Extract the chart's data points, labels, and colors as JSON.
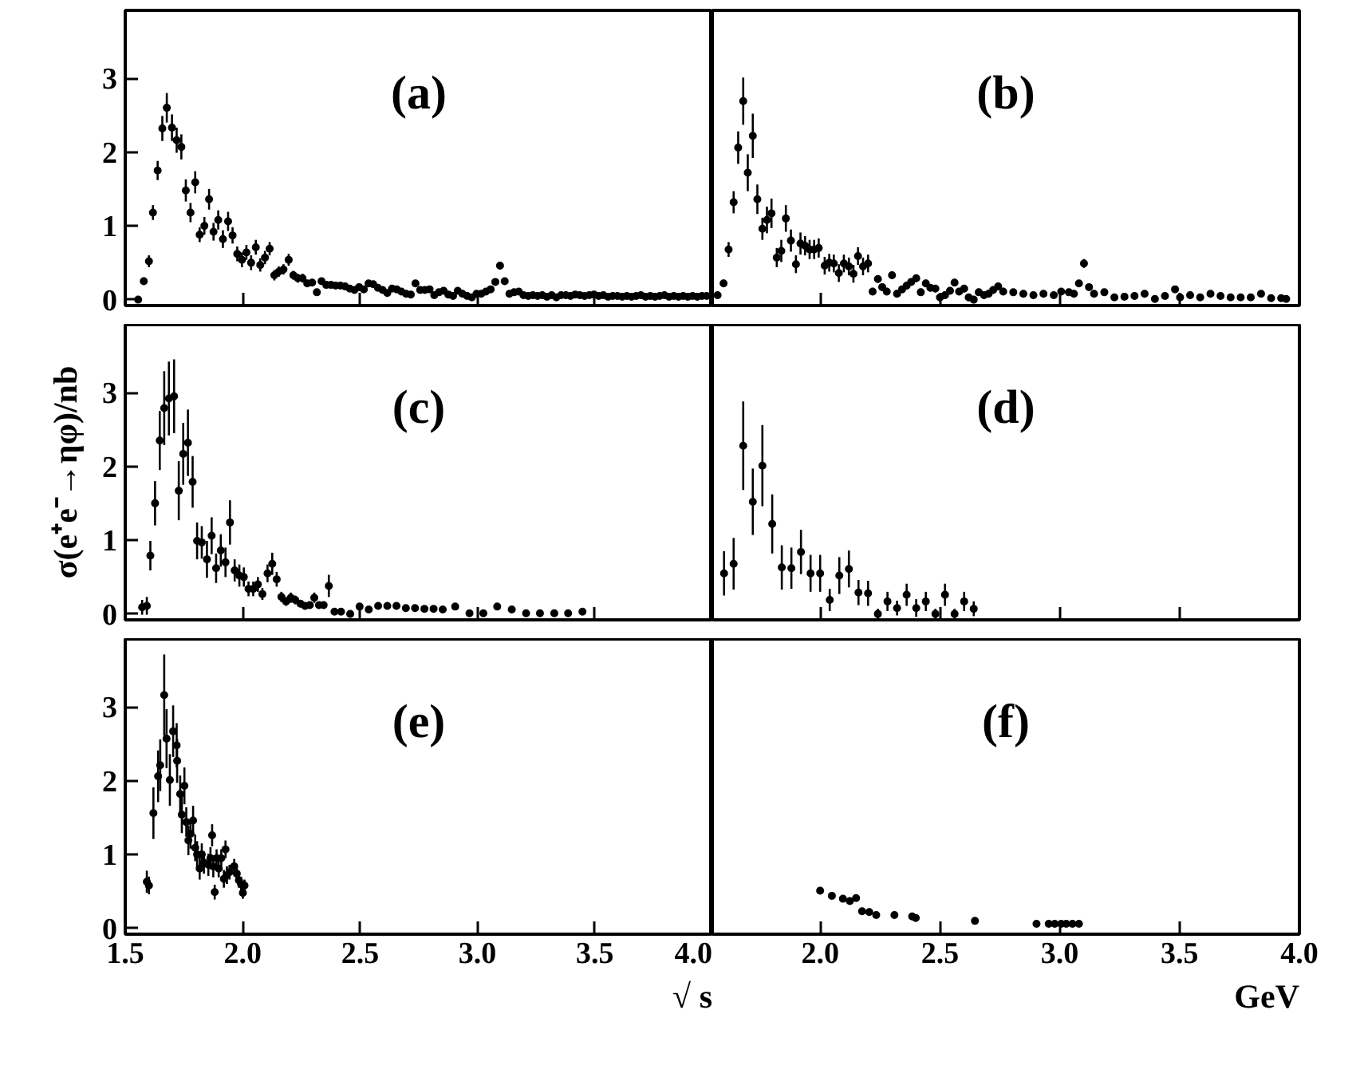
{
  "chart_data": [
    {
      "type": "scatter",
      "annotations": [
        "(a)"
      ],
      "xlim": [
        1.5,
        4.0
      ],
      "ylim": [
        -0.08,
        3.92
      ],
      "yticks": [
        0,
        1,
        2,
        3
      ],
      "xticks": [
        {
          "value": 1.5,
          "label": null
        },
        {
          "value": 2.0,
          "label": null
        },
        {
          "value": 2.5,
          "label": null
        },
        {
          "value": 3.0,
          "label": null
        },
        {
          "value": 3.5,
          "label": null
        },
        {
          "value": 4.0,
          "label": null
        }
      ],
      "tick_labels": "y",
      "grid": false,
      "marker": "circle",
      "color": "#000000",
      "x": [
        1.555,
        1.579,
        1.601,
        1.618,
        1.638,
        1.658,
        1.677,
        1.699,
        1.719,
        1.739,
        1.758,
        1.778,
        1.798,
        1.817,
        1.837,
        1.857,
        1.876,
        1.896,
        1.916,
        1.938,
        1.957,
        1.977,
        1.997,
        2.016,
        2.036,
        2.056,
        2.075,
        2.095,
        2.115,
        2.135,
        2.154,
        2.174,
        2.196,
        2.216,
        2.235,
        2.255,
        2.275,
        2.296,
        2.316,
        2.336,
        2.356,
        2.376,
        2.396,
        2.416,
        2.436,
        2.456,
        2.476,
        2.496,
        2.516,
        2.536,
        2.556,
        2.576,
        2.596,
        2.616,
        2.636,
        2.656,
        2.676,
        2.696,
        2.716,
        2.736,
        2.756,
        2.776,
        2.796,
        2.816,
        2.836,
        2.856,
        2.876,
        2.896,
        2.916,
        2.936,
        2.956,
        2.976,
        2.996,
        3.016,
        3.036,
        3.056,
        3.076,
        3.096,
        3.116,
        3.136,
        3.156,
        3.176,
        3.196,
        3.216,
        3.236,
        3.256,
        3.276,
        3.296,
        3.316,
        3.336,
        3.356,
        3.376,
        3.396,
        3.416,
        3.436,
        3.456,
        3.476,
        3.496,
        3.516,
        3.536,
        3.556,
        3.576,
        3.596,
        3.616,
        3.636,
        3.656,
        3.676,
        3.696,
        3.716,
        3.736,
        3.756,
        3.776,
        3.796,
        3.816,
        3.836,
        3.856,
        3.876,
        3.896,
        3.916,
        3.936,
        3.956,
        3.976
      ],
      "values": [
        0.0,
        0.25,
        0.52,
        1.18,
        1.75,
        2.32,
        2.6,
        2.33,
        2.16,
        2.07,
        1.48,
        1.18,
        1.59,
        0.88,
        1.0,
        1.36,
        0.92,
        1.08,
        0.82,
        1.06,
        0.87,
        0.62,
        0.54,
        0.64,
        0.5,
        0.71,
        0.47,
        0.57,
        0.69,
        0.33,
        0.38,
        0.41,
        0.54,
        0.33,
        0.29,
        0.29,
        0.22,
        0.23,
        0.1,
        0.25,
        0.2,
        0.2,
        0.19,
        0.19,
        0.18,
        0.15,
        0.13,
        0.17,
        0.14,
        0.22,
        0.21,
        0.16,
        0.13,
        0.09,
        0.15,
        0.14,
        0.11,
        0.08,
        0.07,
        0.22,
        0.13,
        0.13,
        0.14,
        0.06,
        0.1,
        0.12,
        0.07,
        0.05,
        0.12,
        0.08,
        0.05,
        0.03,
        0.08,
        0.08,
        0.11,
        0.14,
        0.24,
        0.46,
        0.25,
        0.08,
        0.1,
        0.11,
        0.06,
        0.05,
        0.06,
        0.05,
        0.06,
        0.04,
        0.06,
        0.03,
        0.06,
        0.06,
        0.05,
        0.07,
        0.06,
        0.05,
        0.06,
        0.07,
        0.05,
        0.06,
        0.04,
        0.05,
        0.05,
        0.04,
        0.05,
        0.04,
        0.05,
        0.06,
        0.04,
        0.05,
        0.04,
        0.05,
        0.06,
        0.04,
        0.05,
        0.04,
        0.05,
        0.04,
        0.05,
        0.04,
        0.05,
        0.05
      ],
      "errors": [
        0.03,
        0.05,
        0.08,
        0.1,
        0.13,
        0.17,
        0.2,
        0.18,
        0.17,
        0.17,
        0.15,
        0.13,
        0.15,
        0.1,
        0.12,
        0.14,
        0.12,
        0.13,
        0.12,
        0.13,
        0.11,
        0.1,
        0.1,
        0.1,
        0.1,
        0.1,
        0.09,
        0.09,
        0.09,
        0.07,
        0.07,
        0.07,
        0.08,
        0.06,
        0.06,
        0.06,
        0.05,
        0.05,
        0.04,
        0.04,
        0.03,
        0.03,
        0.03,
        0.03,
        0.03,
        0.03,
        0.03,
        0.03,
        0.03,
        0.03,
        0.03,
        0.03,
        0.03,
        0.03,
        0.03,
        0.03,
        0.03,
        0.03,
        0.03,
        0.03,
        0.03,
        0.03,
        0.03,
        0.03,
        0.03,
        0.03,
        0.03,
        0.03,
        0.03,
        0.03,
        0.03,
        0.03,
        0.03,
        0.03,
        0.03,
        0.03,
        0.03,
        0.05,
        0.03,
        0.03,
        0.03,
        0.03,
        0.03,
        0.03,
        0.03,
        0.03,
        0.03,
        0.03,
        0.03,
        0.03,
        0.03,
        0.03,
        0.03,
        0.03,
        0.03,
        0.03,
        0.03,
        0.03,
        0.03,
        0.03,
        0.03,
        0.03,
        0.03,
        0.03,
        0.03,
        0.03,
        0.03,
        0.03,
        0.03,
        0.03,
        0.03,
        0.03,
        0.03,
        0.03,
        0.03,
        0.03,
        0.03,
        0.03,
        0.03,
        0.03,
        0.03,
        0.03
      ]
    },
    {
      "type": "scatter",
      "annotations": [
        "(b)"
      ],
      "xlim": [
        1.55,
        4.0
      ],
      "ylim": [
        -0.08,
        3.92
      ],
      "yticks": [
        0,
        1,
        2,
        3
      ],
      "xticks": [
        {
          "value": 2.0,
          "label": null
        },
        {
          "value": 2.5,
          "label": null
        },
        {
          "value": 3.0,
          "label": null
        },
        {
          "value": 3.5,
          "label": null
        },
        {
          "value": 4.0,
          "label": null
        }
      ],
      "tick_labels": false,
      "grid": false,
      "marker": "circle",
      "color": "#000000",
      "x": [
        1.572,
        1.597,
        1.618,
        1.639,
        1.658,
        1.679,
        1.698,
        1.719,
        1.738,
        1.759,
        1.778,
        1.797,
        1.819,
        1.838,
        1.857,
        1.878,
        1.899,
        1.918,
        1.937,
        1.956,
        1.975,
        1.994,
        2.019,
        2.038,
        2.057,
        2.078,
        2.099,
        2.12,
        2.139,
        2.158,
        2.179,
        2.2,
        2.219,
        2.241,
        2.259,
        2.278,
        2.3,
        2.321,
        2.342,
        2.361,
        2.38,
        2.401,
        2.42,
        2.441,
        2.46,
        2.481,
        2.5,
        2.521,
        2.542,
        2.561,
        2.58,
        2.601,
        2.62,
        2.641,
        2.662,
        2.684,
        2.703,
        2.722,
        2.743,
        2.764,
        2.806,
        2.848,
        2.89,
        2.932,
        2.975,
        3.006,
        3.038,
        3.059,
        3.08,
        3.101,
        3.122,
        3.143,
        3.186,
        3.228,
        3.27,
        3.312,
        3.354,
        3.397,
        3.439,
        3.481,
        3.502,
        3.544,
        3.586,
        3.629,
        3.671,
        3.713,
        3.755,
        3.797,
        3.84,
        3.882,
        3.924,
        3.945
      ],
      "values": [
        0.06,
        0.22,
        0.68,
        1.32,
        2.06,
        2.69,
        1.72,
        2.22,
        1.36,
        0.96,
        1.08,
        1.17,
        0.57,
        0.66,
        1.1,
        0.8,
        0.48,
        0.76,
        0.73,
        0.68,
        0.68,
        0.7,
        0.46,
        0.5,
        0.49,
        0.36,
        0.49,
        0.45,
        0.35,
        0.59,
        0.45,
        0.49,
        0.11,
        0.28,
        0.17,
        0.11,
        0.33,
        0.08,
        0.14,
        0.19,
        0.24,
        0.29,
        0.1,
        0.22,
        0.16,
        0.15,
        0.03,
        0.06,
        0.12,
        0.23,
        0.11,
        0.15,
        0.03,
        0.0,
        0.1,
        0.06,
        0.08,
        0.13,
        0.18,
        0.11,
        0.1,
        0.08,
        0.06,
        0.08,
        0.06,
        0.11,
        0.1,
        0.08,
        0.22,
        0.49,
        0.17,
        0.08,
        0.1,
        0.03,
        0.04,
        0.05,
        0.08,
        0.01,
        0.05,
        0.14,
        0.03,
        0.06,
        0.03,
        0.08,
        0.05,
        0.03,
        0.03,
        0.03,
        0.08,
        0.02,
        0.02,
        0.01
      ],
      "errors": [
        0.03,
        0.05,
        0.1,
        0.15,
        0.22,
        0.32,
        0.25,
        0.3,
        0.2,
        0.15,
        0.18,
        0.2,
        0.13,
        0.15,
        0.18,
        0.15,
        0.12,
        0.15,
        0.13,
        0.13,
        0.13,
        0.13,
        0.12,
        0.12,
        0.12,
        0.12,
        0.12,
        0.12,
        0.12,
        0.12,
        0.12,
        0.12,
        0.05,
        0.05,
        0.05,
        0.05,
        0.05,
        0.05,
        0.05,
        0.05,
        0.05,
        0.05,
        0.05,
        0.05,
        0.05,
        0.05,
        0.05,
        0.05,
        0.05,
        0.05,
        0.05,
        0.05,
        0.05,
        0.05,
        0.05,
        0.05,
        0.05,
        0.05,
        0.05,
        0.05,
        0.03,
        0.03,
        0.03,
        0.03,
        0.03,
        0.03,
        0.03,
        0.03,
        0.03,
        0.06,
        0.03,
        0.03,
        0.03,
        0.03,
        0.03,
        0.03,
        0.03,
        0.03,
        0.03,
        0.03,
        0.03,
        0.03,
        0.03,
        0.03,
        0.03,
        0.03,
        0.03,
        0.03,
        0.03,
        0.03,
        0.03,
        0.03
      ]
    },
    {
      "type": "scatter",
      "annotations": [
        "(c)"
      ],
      "ylabel": "σ(e⁺e⁻→ηφ)/nb",
      "xlim": [
        1.5,
        4.0
      ],
      "ylim": [
        -0.08,
        3.92
      ],
      "yticks": [
        0,
        1,
        2,
        3
      ],
      "xticks": [
        {
          "value": 1.5,
          "label": null
        },
        {
          "value": 2.0,
          "label": null
        },
        {
          "value": 2.5,
          "label": null
        },
        {
          "value": 3.0,
          "label": null
        },
        {
          "value": 3.5,
          "label": null
        },
        {
          "value": 4.0,
          "label": null
        }
      ],
      "tick_labels": "y",
      "grid": false,
      "marker": "circle",
      "color": "#000000",
      "x": [
        1.572,
        1.592,
        1.607,
        1.627,
        1.647,
        1.666,
        1.686,
        1.708,
        1.728,
        1.747,
        1.767,
        1.787,
        1.806,
        1.826,
        1.848,
        1.868,
        1.887,
        1.907,
        1.927,
        1.946,
        1.966,
        1.986,
        2.005,
        2.025,
        2.045,
        2.065,
        2.084,
        2.106,
        2.126,
        2.145,
        2.165,
        2.185,
        2.205,
        2.224,
        2.246,
        2.266,
        2.286,
        2.305,
        2.325,
        2.345,
        2.367,
        2.391,
        2.419,
        2.458,
        2.498,
        2.537,
        2.577,
        2.616,
        2.655,
        2.695,
        2.734,
        2.774,
        2.813,
        2.852,
        2.905,
        2.966,
        3.025,
        3.084,
        3.146,
        3.207,
        3.266,
        3.327,
        3.386,
        3.447
      ],
      "values": [
        0.09,
        0.11,
        0.79,
        1.5,
        2.35,
        2.79,
        2.92,
        2.95,
        1.67,
        2.17,
        2.32,
        1.79,
        0.99,
        0.97,
        0.74,
        1.06,
        0.62,
        0.86,
        0.7,
        1.24,
        0.59,
        0.52,
        0.5,
        0.34,
        0.34,
        0.4,
        0.27,
        0.55,
        0.68,
        0.47,
        0.23,
        0.17,
        0.22,
        0.19,
        0.14,
        0.11,
        0.12,
        0.22,
        0.12,
        0.12,
        0.38,
        0.03,
        0.03,
        0.0,
        0.1,
        0.06,
        0.11,
        0.11,
        0.11,
        0.08,
        0.08,
        0.07,
        0.07,
        0.06,
        0.1,
        0.01,
        0.01,
        0.1,
        0.06,
        0.01,
        0.01,
        0.01,
        0.01,
        0.03
      ],
      "errors": [
        0.1,
        0.12,
        0.2,
        0.3,
        0.4,
        0.5,
        0.5,
        0.5,
        0.4,
        0.42,
        0.45,
        0.35,
        0.25,
        0.22,
        0.25,
        0.25,
        0.2,
        0.22,
        0.2,
        0.3,
        0.15,
        0.15,
        0.13,
        0.1,
        0.1,
        0.1,
        0.08,
        0.12,
        0.15,
        0.1,
        0.07,
        0.06,
        0.07,
        0.06,
        0.05,
        0.05,
        0.05,
        0.07,
        0.05,
        0.05,
        0.15,
        null,
        null,
        null,
        null,
        null,
        null,
        null,
        null,
        null,
        null,
        null,
        null,
        null,
        null,
        null,
        null,
        null,
        null,
        null,
        null,
        null,
        null,
        null
      ]
    },
    {
      "type": "scatter",
      "annotations": [
        "(d)"
      ],
      "xlim": [
        1.55,
        4.0
      ],
      "ylim": [
        -0.08,
        3.92
      ],
      "yticks": [
        0,
        1,
        2,
        3
      ],
      "xticks": [
        {
          "value": 2.0,
          "label": null
        },
        {
          "value": 2.5,
          "label": null
        },
        {
          "value": 3.0,
          "label": null
        },
        {
          "value": 3.5,
          "label": null
        },
        {
          "value": 4.0,
          "label": null
        }
      ],
      "tick_labels": false,
      "grid": false,
      "marker": "circle",
      "color": "#000000",
      "x": [
        1.599,
        1.639,
        1.679,
        1.719,
        1.759,
        1.8,
        1.84,
        1.88,
        1.92,
        1.96,
        2.0,
        2.04,
        2.08,
        2.12,
        2.16,
        2.2,
        2.241,
        2.281,
        2.321,
        2.361,
        2.401,
        2.441,
        2.481,
        2.521,
        2.561,
        2.601,
        2.641
      ],
      "values": [
        0.55,
        0.68,
        2.28,
        1.52,
        2.01,
        1.22,
        0.63,
        0.62,
        0.84,
        0.55,
        0.55,
        0.19,
        0.52,
        0.61,
        0.29,
        0.28,
        0.0,
        0.17,
        0.08,
        0.26,
        0.08,
        0.17,
        0.0,
        0.26,
        0.0,
        0.17,
        0.07
      ],
      "errors": [
        0.3,
        0.35,
        0.6,
        0.45,
        0.55,
        0.4,
        0.3,
        0.28,
        0.3,
        0.25,
        0.25,
        0.15,
        0.25,
        0.25,
        0.17,
        0.17,
        0.07,
        0.13,
        0.1,
        0.15,
        0.12,
        0.13,
        0.07,
        0.15,
        0.07,
        0.13,
        0.1
      ]
    },
    {
      "type": "scatter",
      "annotations": [
        "(e)"
      ],
      "xlabel": "√ s",
      "xlim": [
        1.5,
        4.0
      ],
      "ylim": [
        -0.08,
        3.92
      ],
      "yticks": [
        0,
        1,
        2,
        3
      ],
      "xticks": [
        {
          "value": 1.5,
          "label": "1.5"
        },
        {
          "value": 2.0,
          "label": "2.0"
        },
        {
          "value": 2.5,
          "label": "2.5"
        },
        {
          "value": 3.0,
          "label": "3.0"
        },
        {
          "value": 3.5,
          "label": "3.5"
        },
        {
          "value": 4.0,
          "label": "4.0"
        }
      ],
      "grid": false,
      "marker": "circle",
      "color": "#000000",
      "x": [
        1.592,
        1.601,
        1.62,
        1.64,
        1.649,
        1.666,
        1.676,
        1.69,
        1.704,
        1.719,
        1.721,
        1.734,
        1.741,
        1.752,
        1.76,
        1.769,
        1.778,
        1.789,
        1.798,
        1.806,
        1.817,
        1.826,
        1.835,
        1.854,
        1.863,
        1.87,
        1.875,
        1.881,
        1.889,
        1.898,
        1.909,
        1.92,
        1.927,
        1.933,
        1.944,
        1.964,
        1.975,
        1.984,
        1.993,
        2.001,
        2.008
      ],
      "values": [
        0.63,
        0.58,
        1.56,
        2.06,
        2.21,
        3.16,
        2.57,
        2.01,
        2.67,
        2.48,
        2.27,
        1.82,
        1.54,
        1.93,
        1.44,
        1.19,
        1.28,
        1.46,
        1.09,
        1.0,
        0.81,
        1.0,
        0.89,
        0.86,
        0.95,
        1.26,
        0.84,
        0.49,
        0.95,
        0.81,
        0.95,
        0.67,
        1.07,
        0.72,
        0.76,
        0.84,
        0.74,
        0.65,
        0.6,
        0.48,
        0.58
      ],
      "errors": [
        0.15,
        0.12,
        0.35,
        0.35,
        0.35,
        0.55,
        0.4,
        0.35,
        0.35,
        0.3,
        0.3,
        0.25,
        0.25,
        0.25,
        0.2,
        0.2,
        0.2,
        0.2,
        0.18,
        0.18,
        0.15,
        0.15,
        0.15,
        0.15,
        0.15,
        0.15,
        0.15,
        0.1,
        0.12,
        0.12,
        0.12,
        0.12,
        0.12,
        0.12,
        0.1,
        0.1,
        0.1,
        0.1,
        0.1,
        0.08,
        0.08
      ]
    },
    {
      "type": "scatter",
      "annotations": [
        "(f)"
      ],
      "xlabel": "GeV",
      "xlim": [
        1.55,
        4.0
      ],
      "ylim": [
        -0.08,
        3.92
      ],
      "yticks": [
        0,
        1,
        2,
        3
      ],
      "xticks": [
        {
          "value": 2.0,
          "label": "2.0"
        },
        {
          "value": 2.5,
          "label": "2.5"
        },
        {
          "value": 3.0,
          "label": "3.0"
        },
        {
          "value": 3.5,
          "label": "3.5"
        },
        {
          "value": 4.0,
          "label": "4.0"
        }
      ],
      "tick_labels": "x",
      "grid": false,
      "marker": "circle",
      "color": "#000000",
      "x": [
        2.0,
        2.049,
        2.095,
        2.124,
        2.15,
        2.175,
        2.205,
        2.234,
        2.31,
        2.384,
        2.399,
        2.646,
        2.903,
        2.954,
        2.979,
        3.006,
        3.027,
        3.053,
        3.08
      ],
      "values": [
        0.51,
        0.44,
        0.4,
        0.37,
        0.41,
        0.23,
        0.22,
        0.18,
        0.18,
        0.16,
        0.14,
        0.1,
        0.06,
        0.06,
        0.06,
        0.06,
        0.06,
        0.06,
        0.06
      ]
    }
  ]
}
